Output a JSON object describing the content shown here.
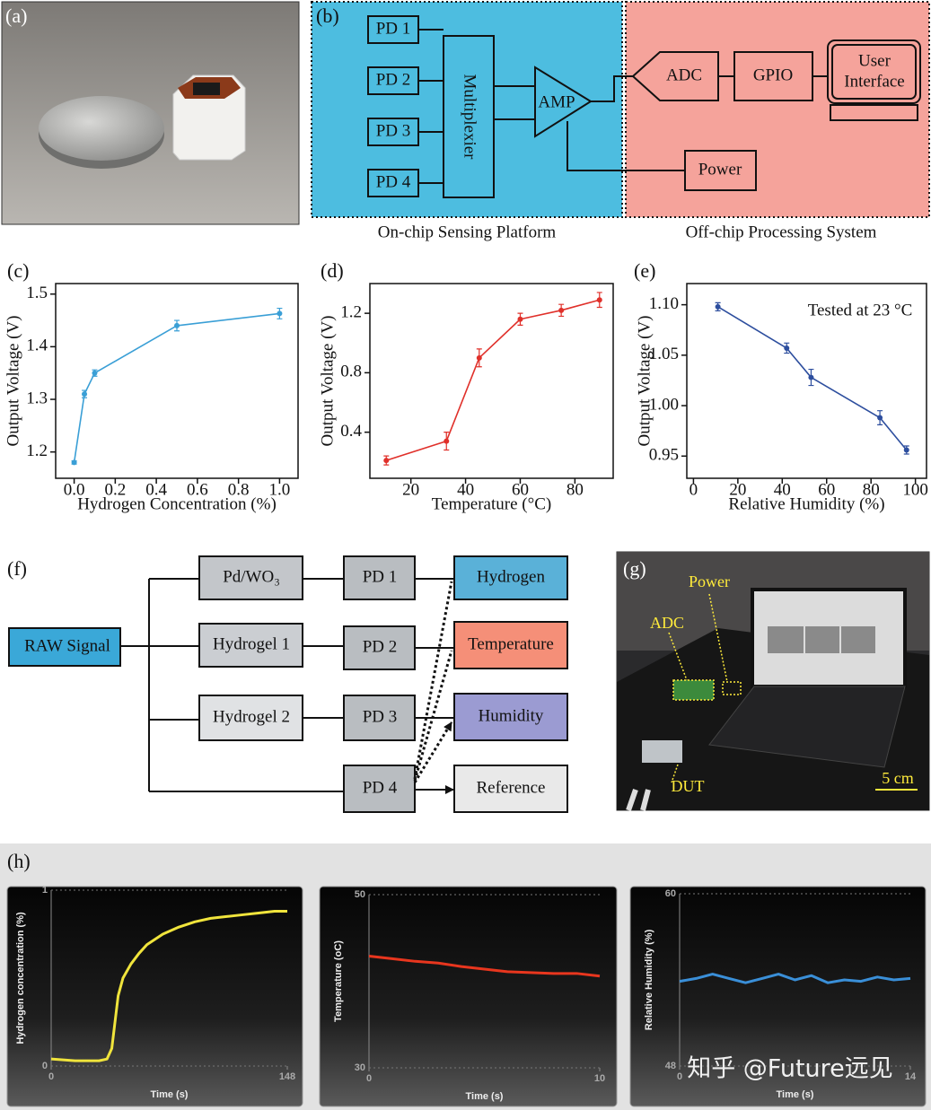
{
  "panel_labels": [
    "(a)",
    "(b)",
    "(c)",
    "(d)",
    "(e)",
    "(f)",
    "(g)",
    "(h)"
  ],
  "block_diagram": {
    "pds": [
      "PD 1",
      "PD 2",
      "PD 3",
      "PD 4"
    ],
    "multiplexer": "Multiplexier",
    "amp": "AMP",
    "adc": "ADC",
    "gpio": "GPIO",
    "ui_lines": [
      "User",
      "Interface"
    ],
    "power": "Power",
    "captions": [
      "On-chip Sensing Platform",
      "Off-chip Processing System"
    ]
  },
  "flow": {
    "raw": "RAW Signal",
    "materials": [
      "Pd/WO₃",
      "Hydrogel 1",
      "Hydrogel 2"
    ],
    "pds": [
      "PD 1",
      "PD 2",
      "PD 3",
      "PD 4"
    ],
    "outputs": [
      "Hydrogen",
      "Temperature",
      "Humidity",
      "Reference"
    ]
  },
  "photo_g": {
    "labels": [
      "Power",
      "ADC",
      "DUT",
      "5 cm"
    ]
  },
  "watermark": "知乎 @Future远见",
  "chart_data": [
    {
      "type": "line",
      "xlabel": "Hydrogen Concentration (%)",
      "ylabel": "Output Voltage (V)",
      "color": "#3a9fd6",
      "x": [
        0,
        0.05,
        0.1,
        0.5,
        1.0
      ],
      "values": [
        1.18,
        1.31,
        1.35,
        1.44,
        1.463
      ],
      "errors": [
        0.003,
        0.007,
        0.006,
        0.01,
        0.01
      ],
      "xlim": [
        -0.09,
        1.09
      ],
      "xticks": [
        {
          "value": 0,
          "label": "0.0"
        },
        0.2,
        0.4,
        0.6,
        0.8,
        {
          "value": 1,
          "label": "1.0"
        }
      ],
      "ylim": [
        1.15,
        1.52
      ],
      "yticks": [
        1.2,
        1.3,
        1.4,
        1.5
      ]
    },
    {
      "type": "line",
      "xlabel": "Temperature (°C)",
      "ylabel": "Output Voltage (V)",
      "color": "#e0302a",
      "x": [
        11,
        33,
        45,
        60,
        75,
        89
      ],
      "values": [
        0.21,
        0.34,
        0.9,
        1.16,
        1.22,
        1.29
      ],
      "errors": [
        0.03,
        0.06,
        0.06,
        0.04,
        0.04,
        0.05
      ],
      "xlim": [
        5,
        94
      ],
      "xticks": [
        20,
        40,
        60,
        80
      ],
      "ylim": [
        0.09,
        1.4
      ],
      "yticks": [
        0.4,
        0.8,
        1.2
      ]
    },
    {
      "type": "line",
      "xlabel": "Relative Humidity (%)",
      "ylabel": "Output Voltage (V)",
      "color": "#2d4e9e",
      "annotation": "Tested at 23 °C",
      "x": [
        11,
        42,
        53,
        84,
        96
      ],
      "values": [
        1.098,
        1.057,
        1.028,
        0.988,
        0.956
      ],
      "errors": [
        0.004,
        0.005,
        0.008,
        0.007,
        0.004
      ],
      "xlim": [
        -3,
        105
      ],
      "xticks": [
        0,
        20,
        40,
        60,
        80,
        100
      ],
      "ylim": [
        0.928,
        1.121
      ],
      "yticks": [
        0.95,
        {
          "value": 1,
          "label": "1.00"
        },
        1.05,
        {
          "value": 1.1,
          "label": "1.10"
        }
      ]
    },
    {
      "type": "line",
      "xlabel": "Time (s)",
      "ylabel": "Hydrogen concentration (%)",
      "color": "#f0e43c",
      "x": [
        0,
        15,
        30,
        35,
        38,
        40,
        42,
        45,
        50,
        55,
        60,
        70,
        80,
        90,
        100,
        110,
        120,
        130,
        140,
        148
      ],
      "values": [
        0.04,
        0.03,
        0.03,
        0.04,
        0.1,
        0.25,
        0.4,
        0.5,
        0.58,
        0.64,
        0.69,
        0.75,
        0.79,
        0.82,
        0.84,
        0.85,
        0.86,
        0.87,
        0.88,
        0.88
      ],
      "xlim": [
        0,
        148
      ],
      "xticks": [
        0,
        148
      ],
      "ylim": [
        0,
        1
      ],
      "yticks": [
        0,
        1
      ]
    },
    {
      "type": "line",
      "xlabel": "Time (s)",
      "ylabel": "Temperature (oC)",
      "color": "#e8361e",
      "x": [
        0,
        1,
        2,
        3,
        4,
        5,
        6,
        7,
        8,
        9,
        10
      ],
      "values": [
        42.9,
        42.6,
        42.3,
        42.1,
        41.7,
        41.4,
        41.1,
        41.0,
        40.9,
        40.9,
        40.6
      ],
      "xlim": [
        0,
        10
      ],
      "xticks": [
        0,
        10
      ],
      "ylim": [
        30,
        50
      ],
      "yticks": [
        30,
        50
      ]
    },
    {
      "type": "line",
      "xlabel": "Time (s)",
      "ylabel": "Relative Humidity (%)",
      "color": "#3a8fd8",
      "x": [
        0,
        1,
        2,
        3,
        4,
        5,
        6,
        7,
        8,
        9,
        10,
        11,
        12,
        13,
        14
      ],
      "values": [
        53.9,
        54.1,
        54.4,
        54.1,
        53.8,
        54.1,
        54.4,
        54.0,
        54.3,
        53.8,
        54.0,
        53.9,
        54.2,
        54.0,
        54.1
      ],
      "xlim": [
        0,
        14
      ],
      "xticks": [
        0,
        14
      ],
      "ylim": [
        48,
        60
      ],
      "yticks": [
        48,
        60
      ]
    }
  ]
}
